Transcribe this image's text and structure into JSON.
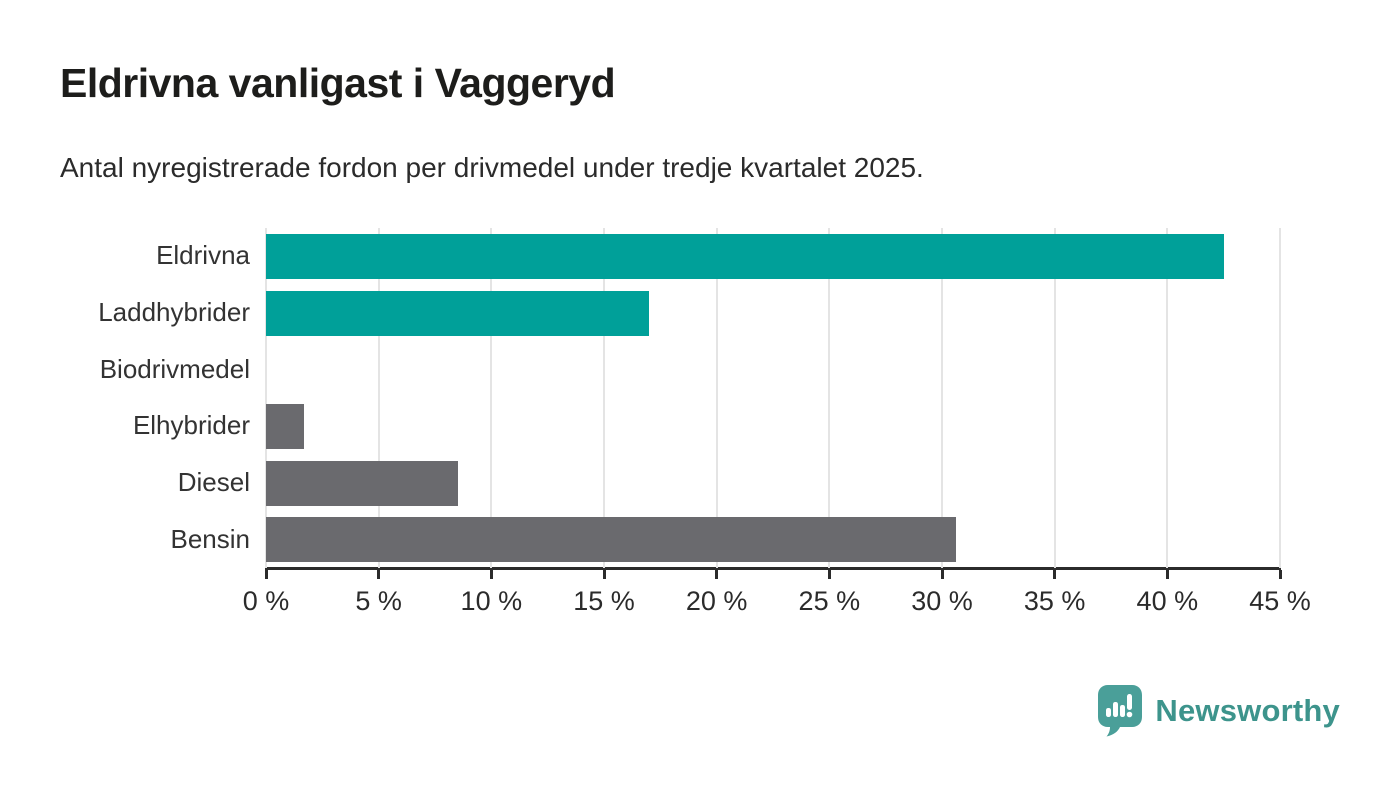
{
  "header": {
    "title": "Eldrivna vanligast i Vaggeryd",
    "subtitle": "Antal nyregistrerade fordon per drivmedel under tredje kvartalet 2025."
  },
  "chart_data": {
    "type": "bar",
    "orientation": "horizontal",
    "title": "Eldrivna vanligast i Vaggeryd",
    "subtitle": "Antal nyregistrerade fordon per drivmedel under tredje kvartalet 2025.",
    "categories": [
      "Eldrivna",
      "Laddhybrider",
      "Biodrivmedel",
      "Elhybrider",
      "Diesel",
      "Bensin"
    ],
    "values": [
      42.5,
      17,
      0,
      1.7,
      8.5,
      30.6
    ],
    "unit": "%",
    "xlim": [
      0,
      45
    ],
    "x_ticks": [
      0,
      5,
      10,
      15,
      20,
      25,
      30,
      35,
      40,
      45
    ],
    "x_tick_labels": [
      "0 %",
      "5 %",
      "10 %",
      "15 %",
      "20 %",
      "25 %",
      "30 %",
      "35 %",
      "40 %",
      "45 %"
    ],
    "bar_colors": [
      "#00a099",
      "#00a099",
      "#6a6a6e",
      "#6a6a6e",
      "#6a6a6e",
      "#6a6a6e"
    ],
    "grid": true,
    "legend": false
  },
  "colors": {
    "accent_teal": "#00a099",
    "bar_gray": "#6a6a6e",
    "axis": "#2b2b2b",
    "gridline": "#e4e4e4",
    "label": "#333333"
  },
  "branding": {
    "logo_text": "Newsworthy",
    "logo_bubble_color": "#4a9f99",
    "logo_text_color": "#3d948c"
  }
}
